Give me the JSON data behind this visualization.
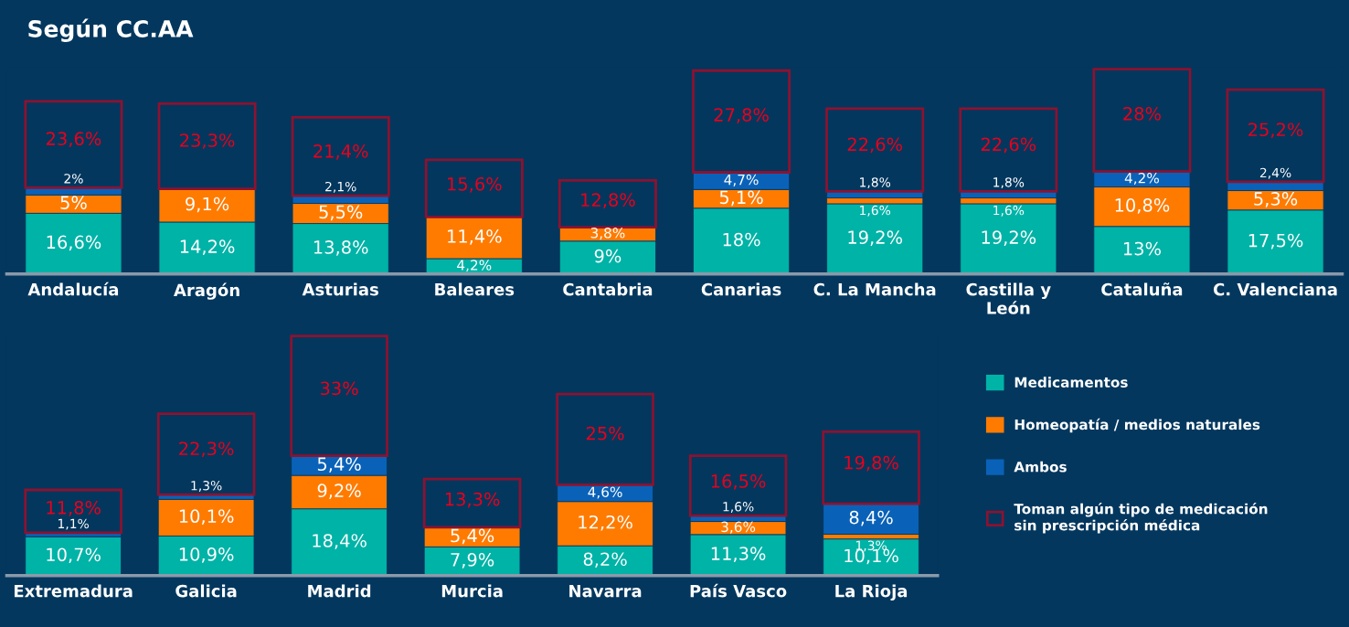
{
  "chart_data": [
    {
      "type": "bar",
      "title": "Según CC.AA",
      "stacked": true,
      "data_labels": true,
      "tick_labels": "x",
      "legend": false,
      "categories": [
        "Andalucía",
        "Aragón",
        "Asturias",
        "Baleares",
        "Cantabria",
        "Canarias",
        "C. La Mancha",
        "Castilla y\nLeón",
        "Cataluña",
        "C. Valenciana"
      ],
      "series": [
        {
          "color": "#00b3a7",
          "values": [
            16.6,
            14.2,
            13.8,
            4.2,
            9,
            18,
            19.2,
            19.2,
            13,
            17.5
          ],
          "value_labels": [
            "16,6%",
            "14,2%",
            "13,8%",
            "4,2%",
            "9%",
            "18%",
            "19,2%",
            "19,2%",
            "13%",
            "17,5%"
          ]
        },
        {
          "color": "#ff7b00",
          "values": [
            5,
            9.1,
            5.5,
            11.4,
            3.8,
            5.1,
            1.6,
            1.6,
            10.8,
            5.3
          ],
          "value_labels": [
            "5%",
            "9,1%",
            "5,5%",
            "11,4%",
            "3,8%",
            "5,1%",
            "1,6%",
            "1,6%",
            "10,8%",
            "5,3%"
          ]
        },
        {
          "color": "#0a62b8",
          "values": [
            2,
            null,
            2.1,
            null,
            null,
            4.7,
            1.8,
            1.8,
            4.2,
            2.4
          ],
          "value_labels": [
            "2%",
            null,
            "2,1%",
            null,
            null,
            "4,7%",
            "1,8%",
            "1,8%",
            "4,2%",
            "2,4%"
          ]
        },
        {
          "color": "#8c1230",
          "line_style": "solid",
          "values": [
            23.6,
            23.3,
            21.4,
            15.6,
            12.8,
            27.8,
            22.6,
            22.6,
            28,
            25.2
          ],
          "value_labels": [
            "23,6%",
            "23,3%",
            "21,4%",
            "15,6%",
            "12,8%",
            "27,8%",
            "22,6%",
            "22,6%",
            "28%",
            "25,2%"
          ]
        }
      ]
    },
    {
      "type": "bar",
      "stacked": true,
      "data_labels": true,
      "tick_labels": "x",
      "legend": "right",
      "categories": [
        "Extremadura",
        "Galicia",
        "Madrid",
        "Murcia",
        "Navarra",
        "País Vasco",
        "La Rioja"
      ],
      "series": [
        {
          "name": "Medicamentos",
          "color": "#00b3a7",
          "values": [
            10.7,
            10.9,
            18.4,
            7.9,
            8.2,
            11.3,
            10.1
          ],
          "value_labels": [
            "10,7%",
            "10,9%",
            "18,4%",
            "7,9%",
            "8,2%",
            "11,3%",
            "10,1%"
          ]
        },
        {
          "name": "Homeopatía / medios naturales",
          "color": "#ff7b00",
          "values": [
            null,
            10.1,
            9.2,
            5.4,
            12.2,
            3.6,
            1.3
          ],
          "value_labels": [
            null,
            "10,1%",
            "9,2%",
            "5,4%",
            "12,2%",
            "3,6%",
            "1,3%"
          ]
        },
        {
          "name": "Ambos",
          "color": "#0a62b8",
          "values": [
            1.1,
            1.3,
            5.4,
            null,
            4.6,
            1.6,
            8.4
          ],
          "value_labels": [
            "1,1%",
            "1,3%",
            "5,4%",
            null,
            "4,6%",
            "1,6%",
            "8,4%"
          ]
        },
        {
          "name": "Toman algún tipo de medicación\nsin prescripción médica",
          "color": "#8c1230",
          "line_style": "solid",
          "values": [
            11.8,
            22.3,
            33,
            13.3,
            25,
            16.5,
            19.8
          ],
          "value_labels": [
            "11,8%",
            "22,3%",
            "33%",
            "13,3%",
            "25%",
            "16,5%",
            "19,8%"
          ]
        }
      ]
    }
  ]
}
